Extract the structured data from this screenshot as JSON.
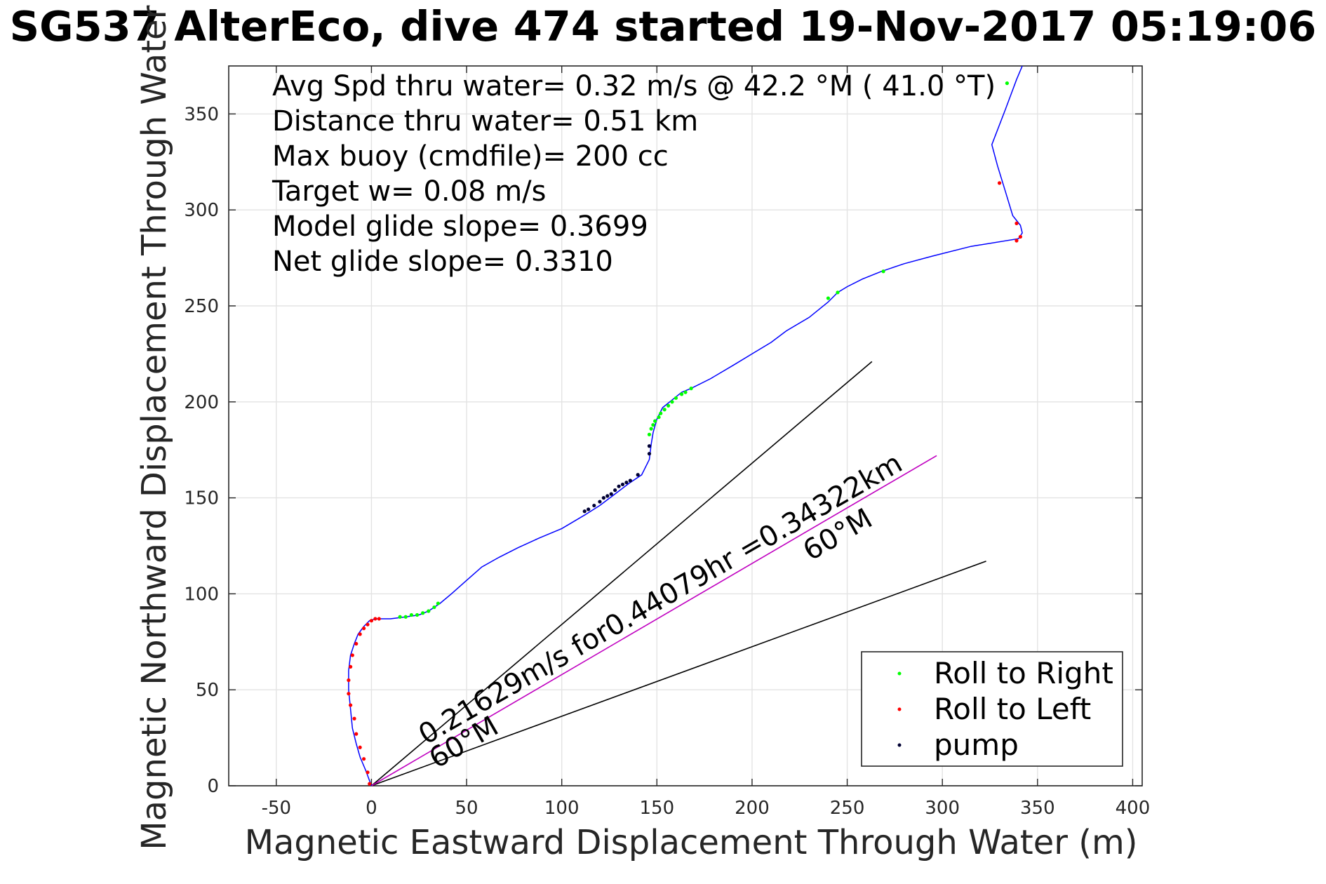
{
  "chart_data": {
    "type": "line",
    "title": "SG537 AlterEco, dive 474 started 19-Nov-2017 05:19:06",
    "xlabel": "Magnetic Eastward Displacement Through Water (m)",
    "ylabel": "Magnetic Northward Displacement Through Water (m)",
    "xlim": [
      -75,
      405
    ],
    "ylim": [
      0,
      375
    ],
    "x_ticks": [
      -50,
      0,
      50,
      100,
      150,
      200,
      250,
      300,
      350,
      400
    ],
    "y_ticks": [
      0,
      50,
      100,
      150,
      200,
      250,
      300,
      350
    ],
    "grid": true,
    "annotations": [
      "Avg Spd thru water=  0.32 m/s @  42.2 °M ( 41.0 °T)",
      "Distance thru water=  0.51 km",
      "Max buoy (cmdfile)= 200 cc",
      "Target w= 0.08 m/s",
      "Model glide slope= 0.3699",
      "Net glide slope= 0.3310"
    ],
    "vector_label": "0.21629m/s for0.44079hr =0.34322km",
    "heading_label_top": "60°M",
    "heading_label_bottom": "60°M",
    "track": {
      "x": [
        0,
        -3,
        -6,
        -8,
        -10,
        -11,
        -12,
        -12,
        -11,
        -9,
        -7,
        -4,
        -1,
        2,
        5,
        10,
        18,
        25,
        30,
        36,
        42,
        50,
        58,
        67,
        77,
        88,
        100,
        112,
        120,
        128,
        136,
        142,
        146,
        147,
        148,
        150,
        153,
        158,
        163,
        168,
        178,
        190,
        200,
        210,
        218,
        230,
        240,
        245,
        250,
        258,
        268,
        280,
        295,
        315,
        340,
        342,
        341,
        337,
        333,
        329,
        326,
        333,
        339,
        342
      ],
      "y": [
        0,
        8,
        15,
        22,
        30,
        40,
        50,
        60,
        68,
        74,
        79,
        83,
        86,
        87,
        87,
        87,
        88,
        89,
        91,
        95,
        100,
        107,
        114,
        119,
        124,
        129,
        134,
        141,
        146,
        152,
        158,
        162,
        170,
        178,
        184,
        191,
        197,
        201,
        205,
        207,
        212,
        219,
        225,
        231,
        237,
        244,
        252,
        257,
        260,
        264,
        268,
        272,
        276,
        281,
        285,
        288,
        292,
        297,
        310,
        323,
        334,
        352,
        368,
        375
      ]
    },
    "vector": {
      "from": [
        0,
        0
      ],
      "to": [
        297,
        172
      ]
    },
    "heading_rays": [
      {
        "from": [
          0,
          0
        ],
        "to": [
          263,
          221
        ]
      },
      {
        "from": [
          0,
          0
        ],
        "to": [
          323,
          117
        ]
      }
    ],
    "series": [
      {
        "name": "Roll to Right",
        "x": [
          15,
          18,
          21,
          24,
          27,
          30,
          33,
          35,
          146,
          147,
          148,
          149,
          151,
          152,
          154,
          156,
          158,
          160,
          163,
          165,
          168,
          240,
          245,
          269,
          334
        ],
        "y": [
          88,
          88,
          89,
          89,
          90,
          91,
          93,
          95,
          183,
          186,
          188,
          190,
          192,
          194,
          196,
          198,
          200,
          202,
          204,
          205,
          207,
          254,
          257,
          268,
          366
        ]
      },
      {
        "name": "Roll to Left",
        "x": [
          -1,
          -2,
          -4,
          -6,
          -8,
          -9,
          -11,
          -12,
          -12,
          -11,
          -10,
          -8,
          -6,
          -4,
          -2,
          0,
          2,
          4,
          330,
          339,
          339,
          341
        ],
        "y": [
          1,
          7,
          14,
          20,
          27,
          35,
          42,
          48,
          55,
          62,
          68,
          74,
          79,
          82,
          84,
          86,
          87,
          87,
          314,
          293,
          284,
          286
        ]
      },
      {
        "name": "pump",
        "x": [
          112,
          114,
          117,
          120,
          122,
          124,
          126,
          128,
          130,
          132,
          134,
          136,
          140,
          146,
          146
        ],
        "y": [
          143,
          144,
          146,
          148,
          150,
          151,
          152,
          154,
          156,
          157,
          158,
          159,
          162,
          173,
          177
        ]
      }
    ],
    "colors": {
      "track": "#0000ff",
      "vector": "#c000c0",
      "rays": "#000000",
      "Roll to Right": "#00ff00",
      "Roll to Left": "#ff0000",
      "pump": "#000033",
      "grid": "#e3e3e3",
      "axes": "#262626"
    },
    "legend_placement": "bottom-right"
  }
}
